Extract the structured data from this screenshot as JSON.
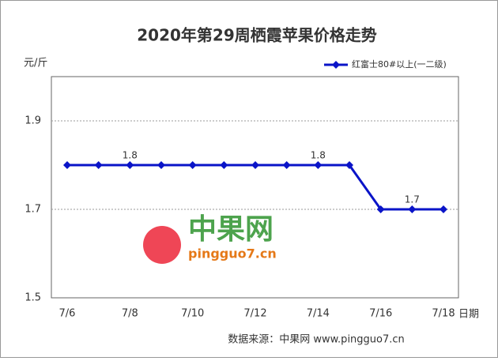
{
  "chart_data": {
    "type": "line",
    "title": "2020年第29周栖霞苹果价格走势",
    "y_label": "元/斤",
    "x_label": "日期",
    "categories": [
      "7/6",
      null,
      "7/8",
      null,
      "7/10",
      null,
      "7/12",
      null,
      "7/14",
      null,
      "7/16",
      null,
      "7/18"
    ],
    "series": [
      {
        "name": "红富士80#以上(一二级)",
        "color": "#0a14c8",
        "values": [
          1.8,
          1.8,
          1.8,
          1.8,
          1.8,
          1.8,
          1.8,
          1.8,
          1.8,
          1.8,
          1.7,
          1.7,
          1.7
        ],
        "value_labels": [
          null,
          null,
          "1.8",
          null,
          null,
          null,
          null,
          null,
          "1.8",
          null,
          null,
          "1.7",
          null
        ]
      }
    ],
    "ylim": [
      1.5,
      2.0
    ],
    "yticks": [
      1.5,
      1.7,
      1.9
    ],
    "grid": true,
    "legend": "top-right",
    "watermark": "中果网",
    "watermark_url": "pingguo7.cn",
    "source": "数据来源：中果网 www.pingguo7.cn"
  }
}
